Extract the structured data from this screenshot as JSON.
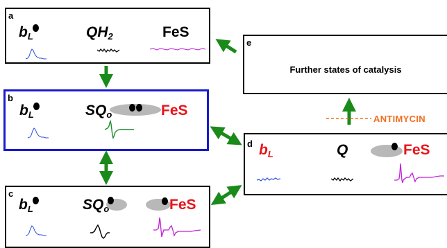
{
  "panels": {
    "a": {
      "label": "a",
      "bl": "b",
      "bl_sub": "L",
      "qh2": "QH",
      "qh2_sub": "2",
      "fes": "FeS"
    },
    "b": {
      "label": "b",
      "bl": "b",
      "bl_sub": "L",
      "sq": "SQ",
      "sq_sub": "o",
      "fes": "FeS"
    },
    "c": {
      "label": "c",
      "bl": "b",
      "bl_sub": "L",
      "sq": "SQ",
      "sq_sub": "o",
      "fes": "FeS"
    },
    "d": {
      "label": "d",
      "bl": "b",
      "bl_sub": "L",
      "q": "Q",
      "fes": "FeS"
    },
    "e": {
      "label": "e",
      "text": "Further states of catalysis"
    }
  },
  "annotation": {
    "antimycin": "ANTIMYCIN"
  },
  "colors": {
    "arrow": "#1a8a1a",
    "highlight_border": "#1a1ad0",
    "blue_trace": "#2a4ee0",
    "green_trace": "#1a8a2a",
    "magenta_trace": "#c020d8",
    "black_trace": "#000000",
    "red_text": "#e8141a",
    "orange_text": "#f07020"
  }
}
